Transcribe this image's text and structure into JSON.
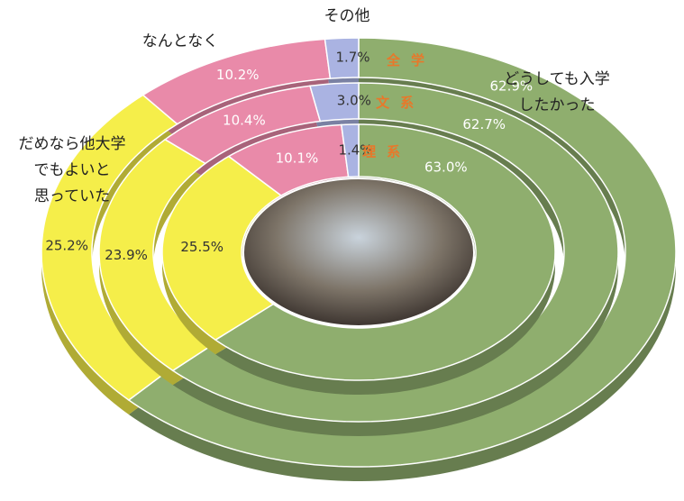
{
  "chart_data": {
    "type": "donut",
    "categories": [
      [
        "どうしても入学",
        "したかった"
      ],
      [
        "だめなら他大学",
        "でもよいと",
        "思っていた"
      ],
      [
        "なんとなく"
      ],
      [
        "その他"
      ]
    ],
    "colors": [
      "#8fae6e",
      "#f5ee4a",
      "#e98aa9",
      "#aab3e2"
    ],
    "label_colors": [
      "#ffffff",
      "#333333",
      "#ffffff",
      "#333333"
    ],
    "series": [
      {
        "name": "全学",
        "values": [
          62.9,
          25.2,
          10.2,
          1.7
        ],
        "value_labels": [
          "62.9%",
          "25.2%",
          "10.2%",
          "1.7%"
        ]
      },
      {
        "name": "文系",
        "values": [
          62.7,
          23.9,
          10.4,
          3.0
        ],
        "value_labels": [
          "62.7%",
          "23.9%",
          "10.4%",
          "3.0%"
        ]
      },
      {
        "name": "理系",
        "values": [
          63.0,
          25.5,
          10.1,
          1.4
        ],
        "value_labels": [
          "63.0%",
          "25.5%",
          "10.1%",
          "1.4%"
        ]
      }
    ]
  }
}
